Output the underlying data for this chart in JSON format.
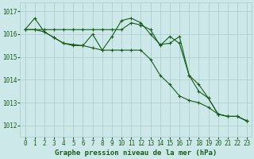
{
  "title": "Graphe pression niveau de la mer (hPa)",
  "bg_color": "#cce8e8",
  "grid_color": "#aacccc",
  "line_color": "#1a5c1a",
  "x_ticks": [
    0,
    1,
    2,
    3,
    4,
    5,
    6,
    7,
    8,
    9,
    10,
    11,
    12,
    13,
    14,
    15,
    16,
    17,
    18,
    19,
    20,
    21,
    22,
    23
  ],
  "y_ticks": [
    1012,
    1013,
    1014,
    1015,
    1016,
    1017
  ],
  "ylim": [
    1011.5,
    1017.4
  ],
  "xlim": [
    -0.5,
    23.5
  ],
  "series": [
    [
      1016.2,
      1016.2,
      1016.2,
      1016.2,
      1016.2,
      1016.2,
      1016.2,
      1016.2,
      1016.2,
      1016.2,
      1016.2,
      1016.5,
      1016.4,
      1016.2,
      1015.5,
      1015.9,
      1015.6,
      1014.2,
      1013.8,
      1013.2,
      1012.5,
      1012.4,
      1012.4,
      1012.2
    ],
    [
      1016.2,
      1016.7,
      1016.1,
      1015.85,
      1015.6,
      1015.55,
      1015.5,
      1016.0,
      1015.3,
      1015.9,
      1016.6,
      1016.7,
      1016.5,
      1016.0,
      1015.55,
      1015.6,
      1015.9,
      1014.2,
      1013.5,
      1013.2,
      1012.5,
      1012.4,
      1012.4,
      1012.2
    ],
    [
      1016.2,
      1016.2,
      1016.1,
      1015.85,
      1015.6,
      1015.5,
      1015.5,
      1015.4,
      1015.3,
      1015.3,
      1015.3,
      1015.3,
      1015.3,
      1014.9,
      1014.2,
      1013.8,
      1013.3,
      1013.1,
      1013.0,
      1012.8,
      1012.5,
      1012.4,
      1012.4,
      1012.2
    ]
  ],
  "title_fontsize": 6.5,
  "tick_fontsize": 5.5
}
